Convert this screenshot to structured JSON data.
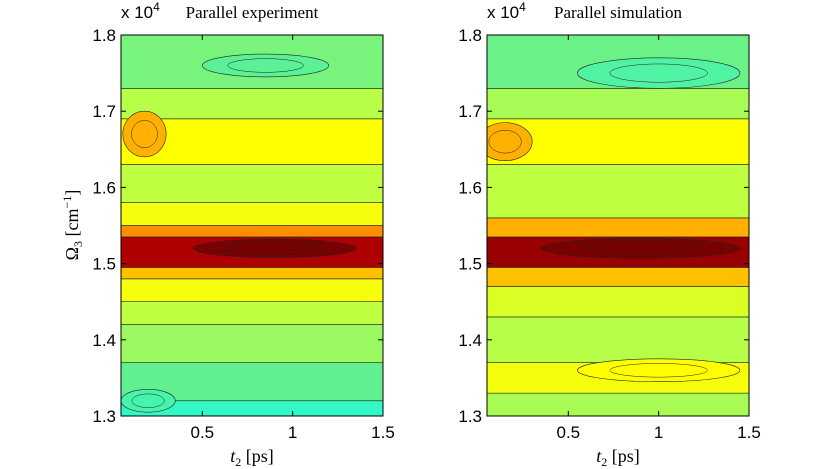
{
  "chart_data": [
    {
      "type": "heatmap",
      "title": "Parallel experiment",
      "xlabel": "t",
      "xlabel_sub": "2",
      "xlabel_unit": "[ps]",
      "ylabel": "Ω",
      "ylabel_sub": "3",
      "ylabel_unit": "[cm",
      "ylabel_sup": "−1",
      "ylabel_close": "]",
      "y_multiplier": "x 10",
      "y_multiplier_exp": "4",
      "xlim": [
        0.05,
        1.5
      ],
      "ylim": [
        13000,
        18000
      ],
      "xticks": [
        0.5,
        1,
        1.5
      ],
      "xtick_labels": [
        "0.5",
        "1",
        "1.5"
      ],
      "yticks": [
        13000,
        14000,
        15000,
        16000,
        17000,
        18000
      ],
      "ytick_labels": [
        "1.3",
        "1.4",
        "1.5",
        "1.6",
        "1.7",
        "1.8"
      ],
      "bands": [
        {
          "y_from": 13000,
          "y_to": 13200,
          "level": 0.16
        },
        {
          "y_from": 13200,
          "y_to": 13700,
          "level": 0.3
        },
        {
          "y_from": 13700,
          "y_to": 14200,
          "level": 0.42
        },
        {
          "y_from": 14200,
          "y_to": 14500,
          "level": 0.5
        },
        {
          "y_from": 14500,
          "y_to": 14800,
          "level": 0.6
        },
        {
          "y_from": 14800,
          "y_to": 14950,
          "level": 0.7
        },
        {
          "y_from": 14950,
          "y_to": 15350,
          "level": 0.95
        },
        {
          "y_from": 15350,
          "y_to": 15500,
          "level": 0.75
        },
        {
          "y_from": 15500,
          "y_to": 15800,
          "level": 0.6
        },
        {
          "y_from": 15800,
          "y_to": 16300,
          "level": 0.5
        },
        {
          "y_from": 16300,
          "y_to": 16900,
          "level": 0.62
        },
        {
          "y_from": 16900,
          "y_to": 17300,
          "level": 0.48
        },
        {
          "y_from": 17300,
          "y_to": 18000,
          "level": 0.35
        }
      ],
      "hotspots": [
        {
          "x": 0.18,
          "y": 16700,
          "rx": 0.12,
          "ry": 300,
          "level": 0.72
        },
        {
          "x": 0.9,
          "y": 15200,
          "rx": 0.45,
          "ry": 120,
          "level": 1.0
        },
        {
          "x": 0.85,
          "y": 17600,
          "rx": 0.35,
          "ry": 150,
          "level": 0.28
        },
        {
          "x": 0.2,
          "y": 13200,
          "rx": 0.15,
          "ry": 150,
          "level": 0.22
        }
      ]
    },
    {
      "type": "heatmap",
      "title": "Parallel simulation",
      "xlabel": "t",
      "xlabel_sub": "2",
      "xlabel_unit": "[ps]",
      "y_multiplier": "x 10",
      "y_multiplier_exp": "4",
      "xlim": [
        0.05,
        1.5
      ],
      "ylim": [
        13000,
        18000
      ],
      "xticks": [
        0.5,
        1,
        1.5
      ],
      "xtick_labels": [
        "0.5",
        "1",
        "1.5"
      ],
      "yticks": [
        13000,
        14000,
        15000,
        16000,
        17000,
        18000
      ],
      "ytick_labels": [
        "1.3",
        "1.4",
        "1.5",
        "1.6",
        "1.7",
        "1.8"
      ],
      "bands": [
        {
          "y_from": 13000,
          "y_to": 13300,
          "level": 0.45
        },
        {
          "y_from": 13300,
          "y_to": 13700,
          "level": 0.6
        },
        {
          "y_from": 13700,
          "y_to": 14300,
          "level": 0.48
        },
        {
          "y_from": 14300,
          "y_to": 14700,
          "level": 0.55
        },
        {
          "y_from": 14700,
          "y_to": 14950,
          "level": 0.7
        },
        {
          "y_from": 14950,
          "y_to": 15350,
          "level": 0.97
        },
        {
          "y_from": 15350,
          "y_to": 15600,
          "level": 0.72
        },
        {
          "y_from": 15600,
          "y_to": 16300,
          "level": 0.5
        },
        {
          "y_from": 16300,
          "y_to": 16900,
          "level": 0.62
        },
        {
          "y_from": 16900,
          "y_to": 17300,
          "level": 0.45
        },
        {
          "y_from": 17300,
          "y_to": 18000,
          "level": 0.32
        }
      ],
      "hotspots": [
        {
          "x": 0.15,
          "y": 16600,
          "rx": 0.15,
          "ry": 250,
          "level": 0.72
        },
        {
          "x": 0.9,
          "y": 15200,
          "rx": 0.55,
          "ry": 130,
          "level": 1.0
        },
        {
          "x": 1.0,
          "y": 17500,
          "rx": 0.45,
          "ry": 200,
          "level": 0.25
        },
        {
          "x": 1.0,
          "y": 13600,
          "rx": 0.45,
          "ry": 150,
          "level": 0.62
        }
      ]
    }
  ]
}
